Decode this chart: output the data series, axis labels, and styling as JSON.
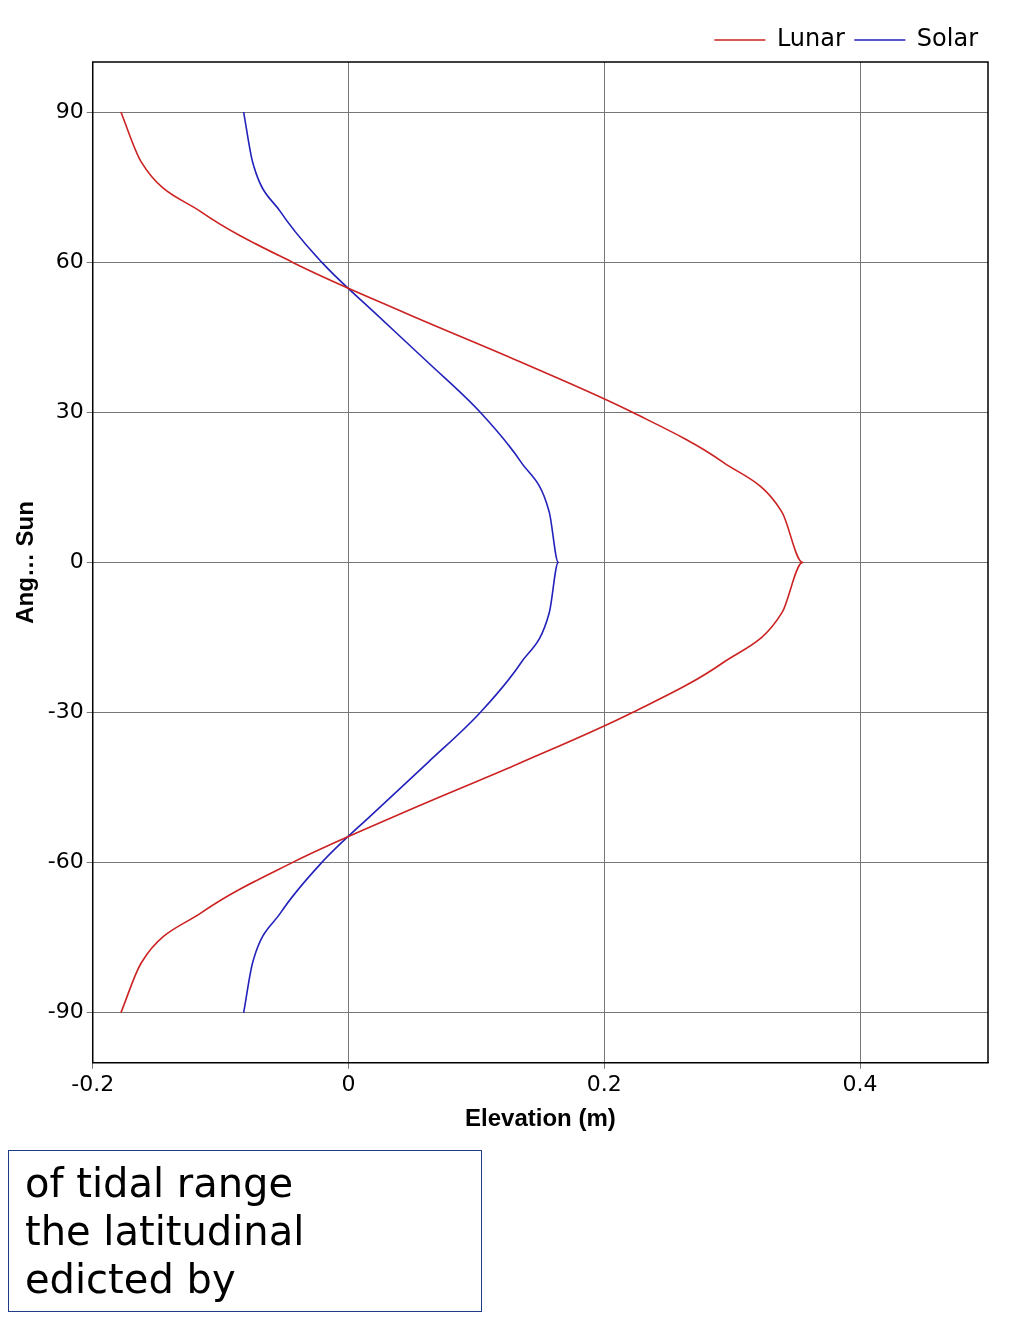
{
  "chart_data": {
    "type": "line",
    "xlabel": "Elevation (m)",
    "ylabel": "Ang… Sun",
    "annotations": [
      "of tidal range\nthe latitudinal\nedicted by"
    ],
    "xlim": [
      -0.2,
      0.5
    ],
    "xticks": [
      -0.2,
      0,
      0.2,
      0.4
    ],
    "ylim": [
      -100,
      100
    ],
    "yticks": [
      -90,
      -60,
      -30,
      0,
      30,
      60,
      90
    ],
    "grid": true,
    "legend": "top right",
    "line_style": "solid",
    "marker": "none",
    "series": [
      {
        "name": "Lunar",
        "color": "#cc2222",
        "x": [
          -0.178,
          -0.162,
          -0.115,
          -0.044,
          0.043,
          0.135,
          0.222,
          0.293,
          0.339,
          0.355,
          0.339,
          0.293,
          0.222,
          0.135,
          0.043,
          -0.044,
          -0.115,
          -0.162,
          -0.178
        ],
        "values": [
          -90,
          -80,
          -70,
          -60,
          -50,
          -40,
          -30,
          -20,
          -10,
          0,
          10,
          20,
          30,
          40,
          50,
          60,
          70,
          80,
          90
        ]
      },
      {
        "name": "Solar",
        "color": "#2222bb",
        "x": [
          -0.082,
          -0.075,
          -0.053,
          -0.021,
          0.02,
          0.062,
          0.103,
          0.135,
          0.157,
          0.164,
          0.157,
          0.135,
          0.103,
          0.062,
          0.02,
          -0.021,
          -0.053,
          -0.075,
          -0.082
        ],
        "values": [
          -90,
          -80,
          -70,
          -60,
          -50,
          -40,
          -30,
          -20,
          -10,
          0,
          10,
          20,
          30,
          40,
          50,
          60,
          70,
          80,
          90
        ]
      }
    ]
  }
}
